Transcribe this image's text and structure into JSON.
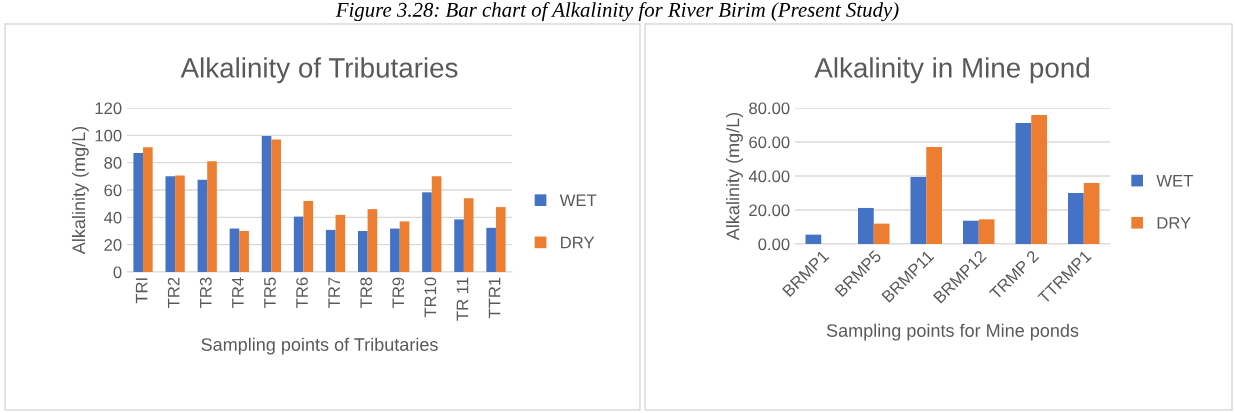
{
  "chart_data": [
    {
      "type": "bar",
      "title": "Alkalinity of Tributaries",
      "xlabel": "Sampling points of Tributaries",
      "ylabel": "Alkalinity (mg/L)",
      "annotations": [
        "Figure 3.28: Bar chart of Alkalinity for River Birim (Present Study)"
      ],
      "categories": [
        "TRI",
        "TR2",
        "TR3",
        "TR4",
        "TR5",
        "TR6",
        "TR7",
        "TR8",
        "TR9",
        "TR10",
        "TR 11",
        "TTR1"
      ],
      "series": [
        {
          "name": "WET",
          "color": "#4472c4",
          "values": [
            87,
            70,
            67.5,
            31.8,
            99.5,
            40.5,
            30.8,
            30,
            31.8,
            58.3,
            38.5,
            32.3
          ]
        },
        {
          "name": "DRY",
          "color": "#ed7d31",
          "values": [
            91.2,
            70.7,
            81,
            30,
            97,
            52,
            41.8,
            46,
            37,
            70,
            54,
            47.5
          ]
        }
      ],
      "ylim": [
        0,
        120
      ],
      "yticks": [
        0,
        20,
        40,
        60,
        80,
        100,
        120
      ],
      "grid": "y",
      "legend": "right"
    },
    {
      "type": "bar",
      "title": "Alkalinity in Mine pond",
      "xlabel": "Sampling points for Mine ponds",
      "ylabel": "Alkalinity (mg/L)",
      "categories": [
        "BRMP1",
        "BRMP5",
        "BRMP11",
        "BRMP12",
        "TRMP 2",
        "TTRMP1"
      ],
      "series": [
        {
          "name": "WET",
          "color": "#4472c4",
          "values": [
            5.5,
            21.2,
            39.4,
            13.7,
            71.2,
            30
          ]
        },
        {
          "name": "DRY",
          "color": "#ed7d31",
          "values": [
            null,
            12,
            57,
            14.5,
            75.9,
            35.9
          ]
        }
      ],
      "ylim": [
        0,
        80
      ],
      "yticks": [
        {
          "value": 0,
          "label": "0.00"
        },
        {
          "value": 20,
          "label": "20.00"
        },
        {
          "value": 40,
          "label": "40.00"
        },
        {
          "value": 60,
          "label": "60.00"
        },
        {
          "value": 80,
          "label": "80.00"
        }
      ],
      "grid": "y",
      "legend": "right"
    }
  ]
}
